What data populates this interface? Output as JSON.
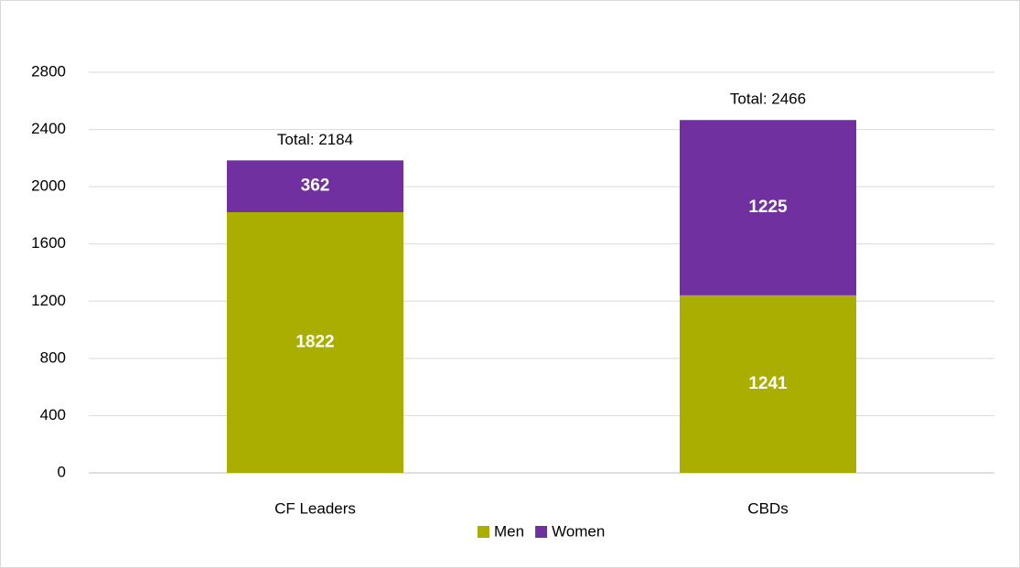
{
  "chart_data": {
    "type": "stacked_bar",
    "categories": [
      "CF Leaders",
      "CBDs"
    ],
    "series": [
      {
        "name": "Men",
        "color": "#a9ae00",
        "values": [
          1822,
          1241
        ]
      },
      {
        "name": "Women",
        "color": "#7030a0",
        "values": [
          362,
          1225
        ]
      }
    ],
    "annotations": [
      "Total: 2184",
      "Total: 2466"
    ],
    "ylim": [
      0,
      2800
    ],
    "yticks": [
      0,
      400,
      800,
      1200,
      1600,
      2000,
      2400,
      2800
    ],
    "grid": true,
    "legend": "bottom"
  }
}
